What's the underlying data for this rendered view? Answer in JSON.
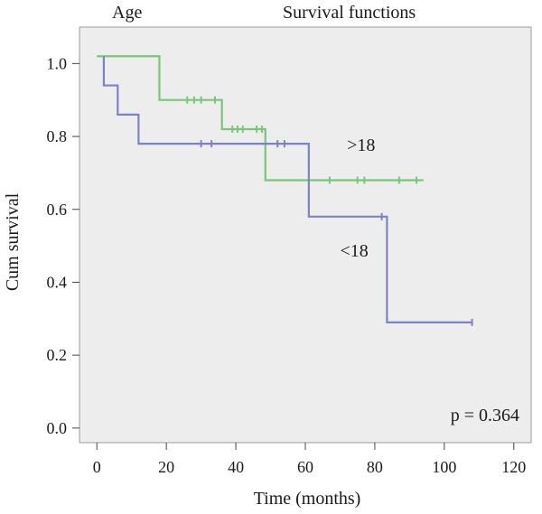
{
  "chart_data": {
    "type": "line",
    "subtype": "kaplan-meier survival curve",
    "panel_label": "Age",
    "title": "Survival functions",
    "xlabel": "Time (months)",
    "ylabel": "Cum survival",
    "xlim": [
      -5,
      125
    ],
    "ylim": [
      -0.04,
      1.1
    ],
    "xticks": [
      0,
      20,
      40,
      60,
      80,
      100,
      120
    ],
    "yticks": [
      0.0,
      0.2,
      0.4,
      0.6,
      0.8,
      1.0
    ],
    "ytick_labels": [
      "0.0",
      "0.2",
      "0.4",
      "0.6",
      "0.8",
      "1.0"
    ],
    "grid": false,
    "background": "#ededed",
    "annotation": "p = 0.364",
    "series": [
      {
        "name": ">18",
        "color": "#7cc47a",
        "steps": [
          [
            0,
            1.02
          ],
          [
            18,
            0.9
          ],
          [
            36,
            0.82
          ],
          [
            48.5,
            0.68
          ],
          [
            94,
            0.68
          ]
        ],
        "censored": [
          [
            26,
            0.9
          ],
          [
            28,
            0.9
          ],
          [
            30,
            0.9
          ],
          [
            34,
            0.9
          ],
          [
            39,
            0.82
          ],
          [
            40.5,
            0.82
          ],
          [
            42,
            0.82
          ],
          [
            46,
            0.82
          ],
          [
            47.5,
            0.82
          ],
          [
            67,
            0.68
          ],
          [
            75,
            0.68
          ],
          [
            77,
            0.68
          ],
          [
            87,
            0.68
          ],
          [
            92,
            0.68
          ]
        ],
        "label_at": [
          72,
          0.76
        ]
      },
      {
        "name": "<18",
        "color": "#7b83c8",
        "steps": [
          [
            2,
            1.02
          ],
          [
            2,
            0.94
          ],
          [
            6,
            0.86
          ],
          [
            12,
            0.78
          ],
          [
            61,
            0.58
          ],
          [
            83.5,
            0.29
          ],
          [
            108,
            0.29
          ]
        ],
        "censored": [
          [
            30,
            0.78
          ],
          [
            33,
            0.78
          ],
          [
            52,
            0.78
          ],
          [
            54,
            0.78
          ],
          [
            82,
            0.58
          ],
          [
            108,
            0.29
          ]
        ],
        "label_at": [
          70,
          0.47
        ]
      }
    ]
  }
}
